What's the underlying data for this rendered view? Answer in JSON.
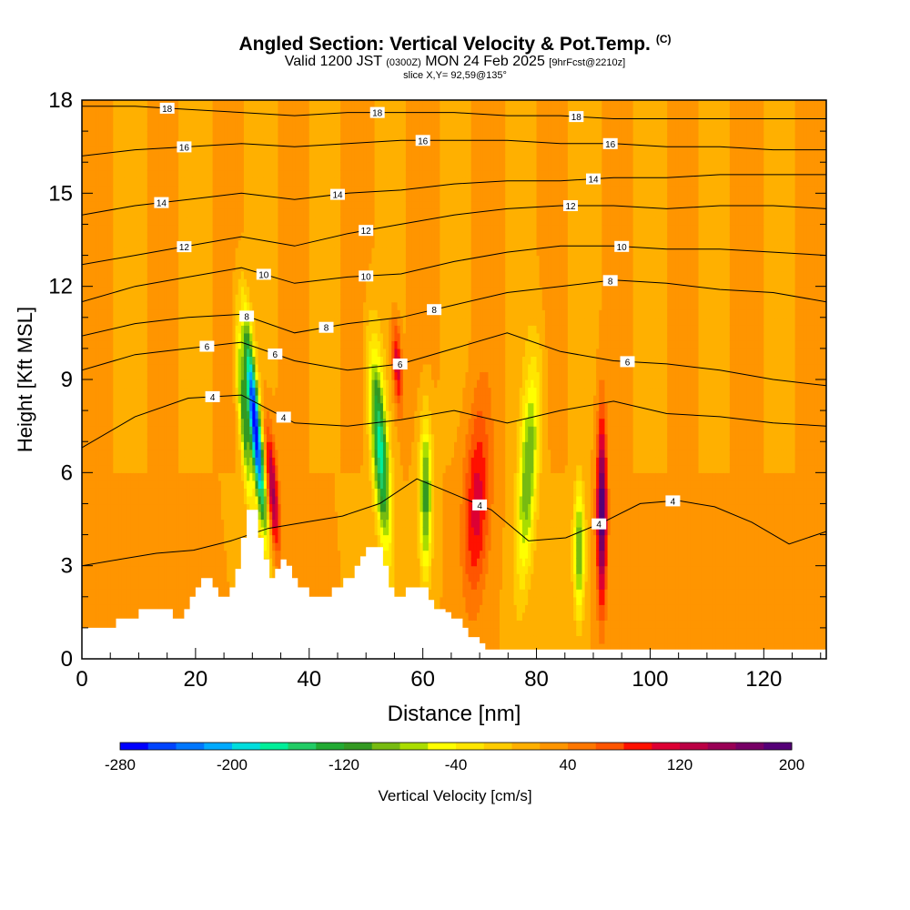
{
  "header": {
    "title": "Angled Section: Vertical Velocity & Pot.Temp.",
    "title_flag": "(C)",
    "valid_prefix": "Valid 1200 JST",
    "valid_utc": "(0300Z)",
    "valid_date": "MON 24 Feb 2025",
    "forecast_tag": "[9hrFcst@2210z]",
    "slice": "slice X,Y= 92,59@135°"
  },
  "chart_data": {
    "type": "heatmap",
    "xlabel": "Distance [nm]",
    "ylabel": "Height [Kft MSL]",
    "xlim": [
      0,
      131
    ],
    "ylim": [
      0,
      18
    ],
    "xticks": [
      0,
      20,
      40,
      60,
      80,
      100,
      120
    ],
    "yticks": [
      0,
      3,
      6,
      9,
      12,
      15,
      18
    ],
    "field": "Vertical Velocity [cm/s]",
    "background_value_cm_s": 20,
    "velocity_features": [
      {
        "x": 30.5,
        "z_bottom": 4.0,
        "z_top": 11.0,
        "peak_cm_s": -280,
        "sigma_x": 0.7,
        "sigma_z": 2.2,
        "tilt": -0.5
      },
      {
        "x": 33.5,
        "z_bottom": 3.0,
        "z_top": 8.0,
        "peak_cm_s": 150,
        "sigma_x": 0.7,
        "sigma_z": 1.4,
        "tilt": -0.4
      },
      {
        "x": 28.5,
        "z_bottom": 4.0,
        "z_top": 11.5,
        "peak_cm_s": -110,
        "sigma_x": 0.6,
        "sigma_z": 2.0,
        "tilt": -0.4
      },
      {
        "x": 52.5,
        "z_bottom": 3.0,
        "z_top": 10.5,
        "peak_cm_s": -170,
        "sigma_x": 1.0,
        "sigma_z": 2.2,
        "tilt": -0.35
      },
      {
        "x": 55.5,
        "z_bottom": 8.0,
        "z_top": 11.0,
        "peak_cm_s": 120,
        "sigma_x": 0.6,
        "sigma_z": 1.0,
        "tilt": -0.3
      },
      {
        "x": 60.5,
        "z_bottom": 2.5,
        "z_top": 8.0,
        "peak_cm_s": -110,
        "sigma_x": 0.8,
        "sigma_z": 1.8,
        "tilt": 0
      },
      {
        "x": 69.5,
        "z_bottom": 2.0,
        "z_top": 8.0,
        "peak_cm_s": 110,
        "sigma_x": 1.6,
        "sigma_z": 2.2,
        "tilt": 0.2
      },
      {
        "x": 78.5,
        "z_bottom": 2.0,
        "z_top": 10.0,
        "peak_cm_s": -100,
        "sigma_x": 1.2,
        "sigma_z": 2.5,
        "tilt": 0.3
      },
      {
        "x": 87.5,
        "z_bottom": 1.0,
        "z_top": 6.0,
        "peak_cm_s": -100,
        "sigma_x": 0.7,
        "sigma_z": 1.5,
        "tilt": 0
      },
      {
        "x": 91.5,
        "z_bottom": 1.0,
        "z_top": 8.5,
        "peak_cm_s": 210,
        "sigma_x": 0.6,
        "sigma_z": 2.0,
        "tilt": 0
      }
    ],
    "terrain_kft": {
      "x": [
        0,
        5,
        6,
        10,
        15,
        16,
        18,
        19,
        20,
        21,
        23,
        24,
        26,
        27,
        28,
        29,
        30,
        31,
        32,
        33,
        34,
        35,
        36,
        37,
        38,
        40,
        42,
        44,
        46,
        48,
        49,
        50,
        53,
        54,
        55,
        57,
        60,
        61,
        62,
        64,
        65,
        67,
        68,
        70,
        71,
        72,
        90,
        91,
        131
      ],
      "z": [
        1.0,
        1.0,
        1.3,
        1.6,
        1.6,
        1.3,
        1.6,
        2.0,
        2.3,
        2.6,
        2.3,
        2.0,
        2.3,
        2.9,
        3.9,
        4.8,
        4.8,
        3.9,
        3.2,
        2.6,
        2.9,
        3.2,
        3.0,
        2.6,
        2.3,
        2.0,
        2.0,
        2.3,
        2.6,
        3.0,
        3.3,
        3.6,
        3.0,
        2.3,
        2.0,
        2.3,
        2.3,
        1.9,
        1.6,
        1.5,
        1.3,
        1.0,
        0.7,
        0.5,
        0.3,
        0.3,
        0.3,
        0.3,
        0.3
      ]
    },
    "isentropes_c": [
      {
        "value": 4,
        "heights_kft": [
          6.8,
          7.8,
          8.4,
          8.5,
          7.6,
          7.5,
          7.7,
          8.0,
          7.6,
          8.0,
          8.3,
          7.9,
          7.8,
          7.6,
          7.5
        ],
        "labels_x": [
          23,
          35.5
        ]
      },
      {
        "value": 4,
        "heights_kft": [
          3.0,
          3.2,
          3.4,
          3.5,
          3.8,
          4.2,
          4.4,
          4.6,
          5.0,
          5.8,
          5.3,
          4.8,
          3.8,
          3.9,
          4.4,
          5.0,
          5.1,
          4.9,
          4.4,
          3.7,
          4.1
        ],
        "labels_x": [
          70,
          91,
          104
        ]
      },
      {
        "value": 6,
        "heights_kft": [
          9.3,
          9.8,
          10.0,
          10.2,
          9.6,
          9.3,
          9.5,
          10.0,
          10.5,
          9.9,
          9.6,
          9.5,
          9.3,
          9.0,
          8.8
        ],
        "labels_x": [
          22,
          34,
          56,
          96
        ]
      },
      {
        "value": 8,
        "heights_kft": [
          10.4,
          10.8,
          11.0,
          11.1,
          10.5,
          10.8,
          11.0,
          11.4,
          11.8,
          12.0,
          12.2,
          12.1,
          11.9,
          11.8,
          11.5
        ],
        "labels_x": [
          29,
          43,
          62,
          93
        ]
      },
      {
        "value": 10,
        "heights_kft": [
          11.5,
          12.0,
          12.3,
          12.6,
          12.1,
          12.3,
          12.4,
          12.8,
          13.1,
          13.3,
          13.3,
          13.2,
          13.2,
          13.1,
          13.0
        ],
        "labels_x": [
          32,
          50,
          95
        ]
      },
      {
        "value": 12,
        "heights_kft": [
          12.7,
          13.0,
          13.3,
          13.6,
          13.3,
          13.7,
          14.0,
          14.3,
          14.5,
          14.6,
          14.6,
          14.5,
          14.6,
          14.6,
          14.5
        ],
        "labels_x": [
          18,
          50,
          86
        ]
      },
      {
        "value": 14,
        "heights_kft": [
          14.3,
          14.6,
          14.8,
          15.0,
          14.8,
          15.0,
          15.1,
          15.3,
          15.4,
          15.4,
          15.5,
          15.5,
          15.6,
          15.6,
          15.6
        ],
        "labels_x": [
          14,
          45,
          90
        ]
      },
      {
        "value": 16,
        "heights_kft": [
          16.2,
          16.4,
          16.5,
          16.6,
          16.5,
          16.6,
          16.7,
          16.7,
          16.7,
          16.6,
          16.6,
          16.5,
          16.5,
          16.4,
          16.4
        ],
        "labels_x": [
          18,
          60,
          93
        ]
      },
      {
        "value": 18,
        "heights_kft": [
          17.8,
          17.8,
          17.7,
          17.6,
          17.5,
          17.6,
          17.6,
          17.6,
          17.5,
          17.5,
          17.4,
          17.4,
          17.4,
          17.4,
          17.4
        ],
        "labels_x": [
          15,
          52,
          87
        ]
      }
    ],
    "colorbar": {
      "label": "Vertical Velocity [cm/s]",
      "ticks": [
        -280,
        -200,
        -120,
        -40,
        40,
        120,
        200
      ],
      "min": -280,
      "step": 20,
      "colors": [
        "#0000ff",
        "#0044ff",
        "#0077ff",
        "#00aaff",
        "#00dddd",
        "#00ee99",
        "#22cc66",
        "#22aa33",
        "#339922",
        "#77bb11",
        "#aadd00",
        "#ffff00",
        "#ffe600",
        "#ffcc00",
        "#ffb000",
        "#ff9500",
        "#ff7700",
        "#ff5500",
        "#ff1100",
        "#dd0033",
        "#bb0044",
        "#990055",
        "#770066",
        "#550077"
      ]
    }
  }
}
